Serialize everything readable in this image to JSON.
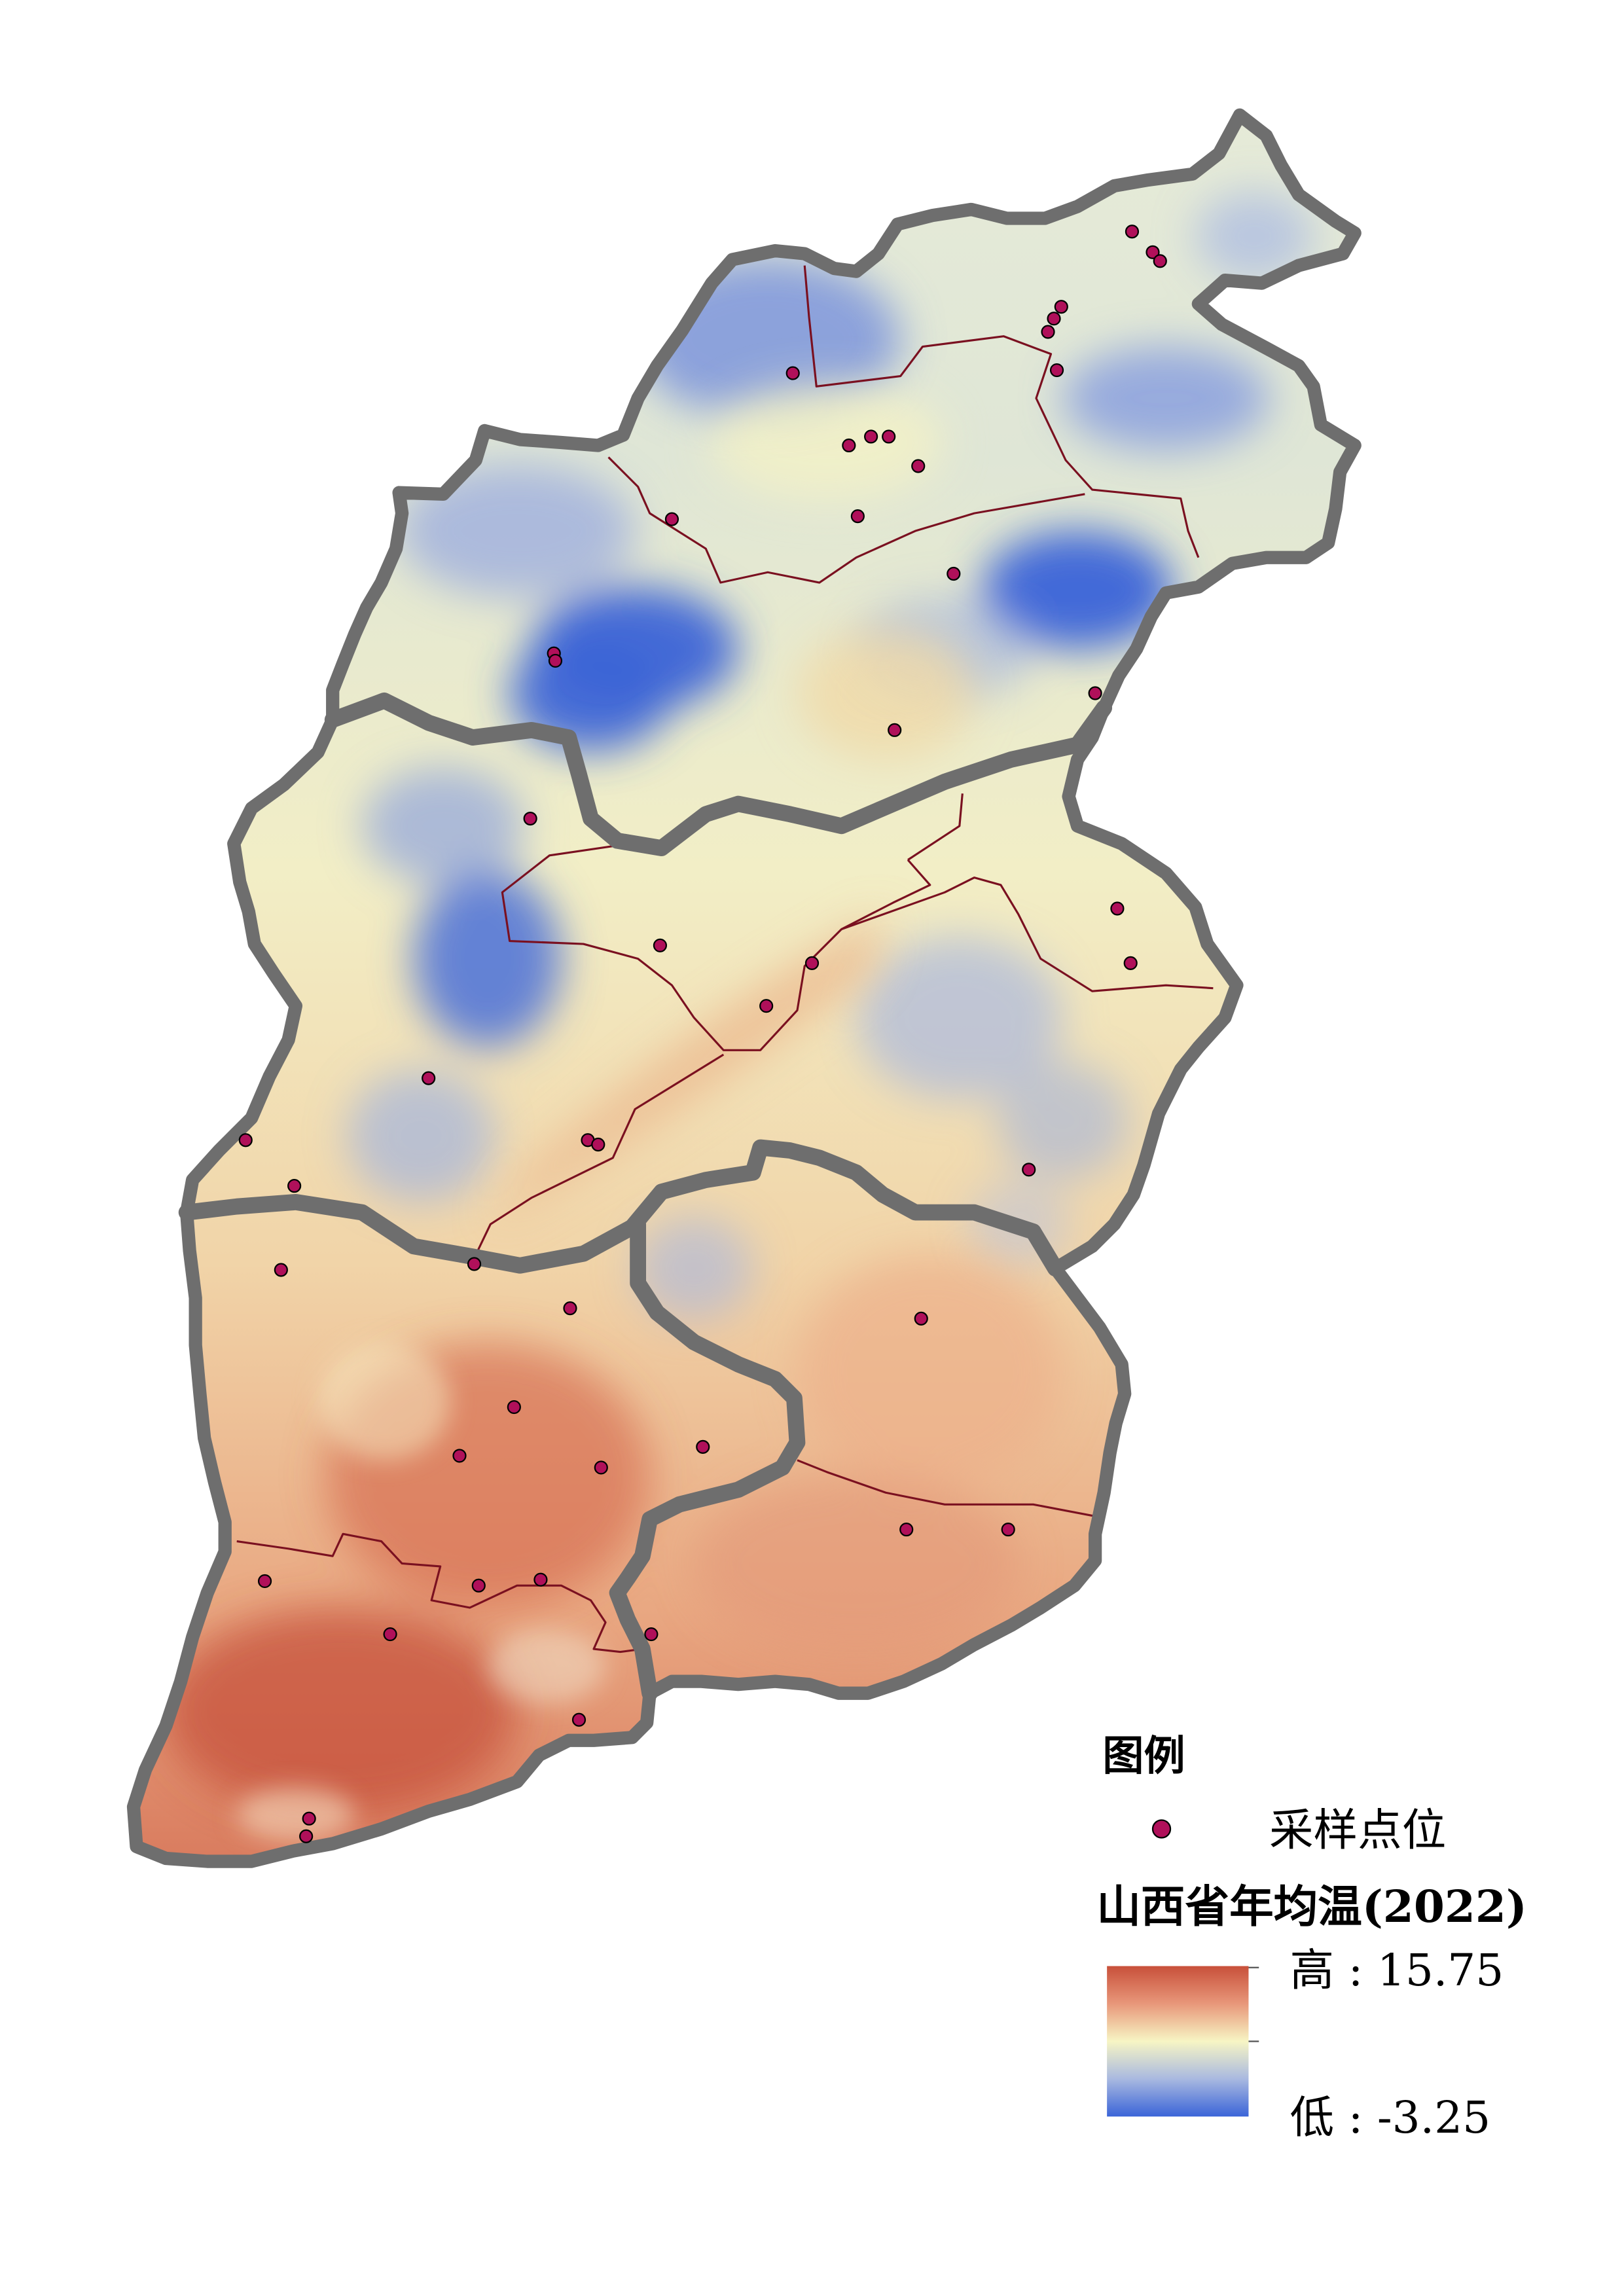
{
  "legend": {
    "title": "图例",
    "point_label": "采样点位",
    "point_color": "#b0105a",
    "ramp_title": "山西省年均温(2022)",
    "high_label": "高 : 15.75",
    "low_label": "低 : -3.25",
    "high_value": 15.75,
    "low_value": -3.25
  },
  "colors": {
    "high": "#c8503a",
    "mid": "#f7f5c4",
    "low": "#3a64d8",
    "outer_border": "#6e6e6e",
    "inner_border": "#7a1020"
  },
  "sample_points_count": 54
}
